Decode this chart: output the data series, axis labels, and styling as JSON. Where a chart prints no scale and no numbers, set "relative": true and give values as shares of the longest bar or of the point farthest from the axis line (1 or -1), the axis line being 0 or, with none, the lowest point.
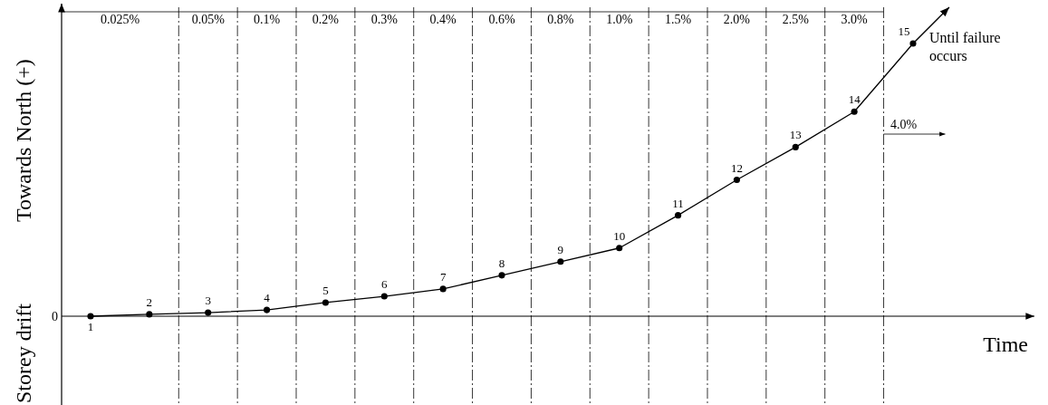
{
  "chart_data": {
    "type": "line",
    "relative": true,
    "xlabel": "Time",
    "ylabel": "Storey drift",
    "marker": "circle",
    "line_style": "solid",
    "categories": [
      "1",
      "2",
      "3",
      "4",
      "5",
      "6",
      "7",
      "8",
      "9",
      "10",
      "11",
      "12",
      "13",
      "14",
      "15"
    ],
    "series": [
      {
        "color": "#000000",
        "values": [
          0,
          0.007,
          0.013,
          0.023,
          0.05,
          0.073,
          0.1,
          0.15,
          0.2,
          0.25,
          0.37,
          0.5,
          0.62,
          0.75,
          1.0
        ]
      }
    ],
    "annotations": [
      "Towards North (+)",
      "0",
      "0.025%",
      "0.05%",
      "0.1%",
      "0.2%",
      "0.3%",
      "0.4%",
      "0.6%",
      "0.8%",
      "1.0%",
      "1.5%",
      "2.0%",
      "2.5%",
      "3.0%",
      "4.0%",
      {
        "text": "Until failure occurs",
        "x": "15",
        "y": 1.0
      }
    ]
  }
}
